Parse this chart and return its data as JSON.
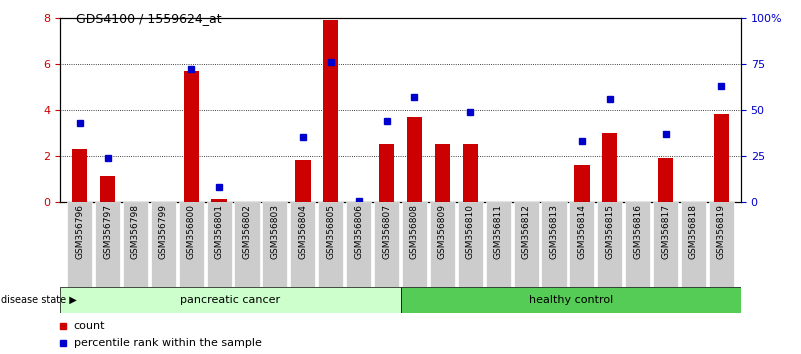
{
  "title": "GDS4100 / 1559624_at",
  "samples": [
    "GSM356796",
    "GSM356797",
    "GSM356798",
    "GSM356799",
    "GSM356800",
    "GSM356801",
    "GSM356802",
    "GSM356803",
    "GSM356804",
    "GSM356805",
    "GSM356806",
    "GSM356807",
    "GSM356808",
    "GSM356809",
    "GSM356810",
    "GSM356811",
    "GSM356812",
    "GSM356813",
    "GSM356814",
    "GSM356815",
    "GSM356816",
    "GSM356817",
    "GSM356818",
    "GSM356819"
  ],
  "counts": [
    2.3,
    1.1,
    0.0,
    0.0,
    5.7,
    0.1,
    0.0,
    0.0,
    1.8,
    7.9,
    0.0,
    2.5,
    3.7,
    2.5,
    2.5,
    0.0,
    0.0,
    0.0,
    1.6,
    3.0,
    0.0,
    1.9,
    0.0,
    3.8
  ],
  "percentiles": [
    43.0,
    24.0,
    null,
    null,
    72.0,
    8.0,
    null,
    null,
    35.0,
    76.0,
    0.5,
    44.0,
    57.0,
    null,
    49.0,
    null,
    null,
    null,
    33.0,
    56.0,
    null,
    37.0,
    null,
    63.0
  ],
  "pancreatic_cancer_count": 12,
  "healthy_control_count": 12,
  "ylim_left": [
    0,
    8
  ],
  "ylim_right": [
    0,
    100
  ],
  "yticks_left": [
    0,
    2,
    4,
    6,
    8
  ],
  "ytick_labels_left": [
    "0",
    "2",
    "4",
    "6",
    "8"
  ],
  "yticks_right": [
    0,
    25,
    50,
    75,
    100
  ],
  "ytick_labels_right": [
    "0",
    "25",
    "50",
    "75",
    "100%"
  ],
  "bar_color": "#cc0000",
  "dot_color": "#0000cc",
  "bg_color_cancer": "#ccffcc",
  "bg_color_healthy": "#55cc55",
  "tick_label_bg": "#cccccc",
  "left_axis_color": "#cc0000",
  "right_axis_color": "#0000cc",
  "legend_count_label": "count",
  "legend_percentile_label": "percentile rank within the sample",
  "fig_width": 8.01,
  "fig_height": 3.54,
  "dpi": 100
}
